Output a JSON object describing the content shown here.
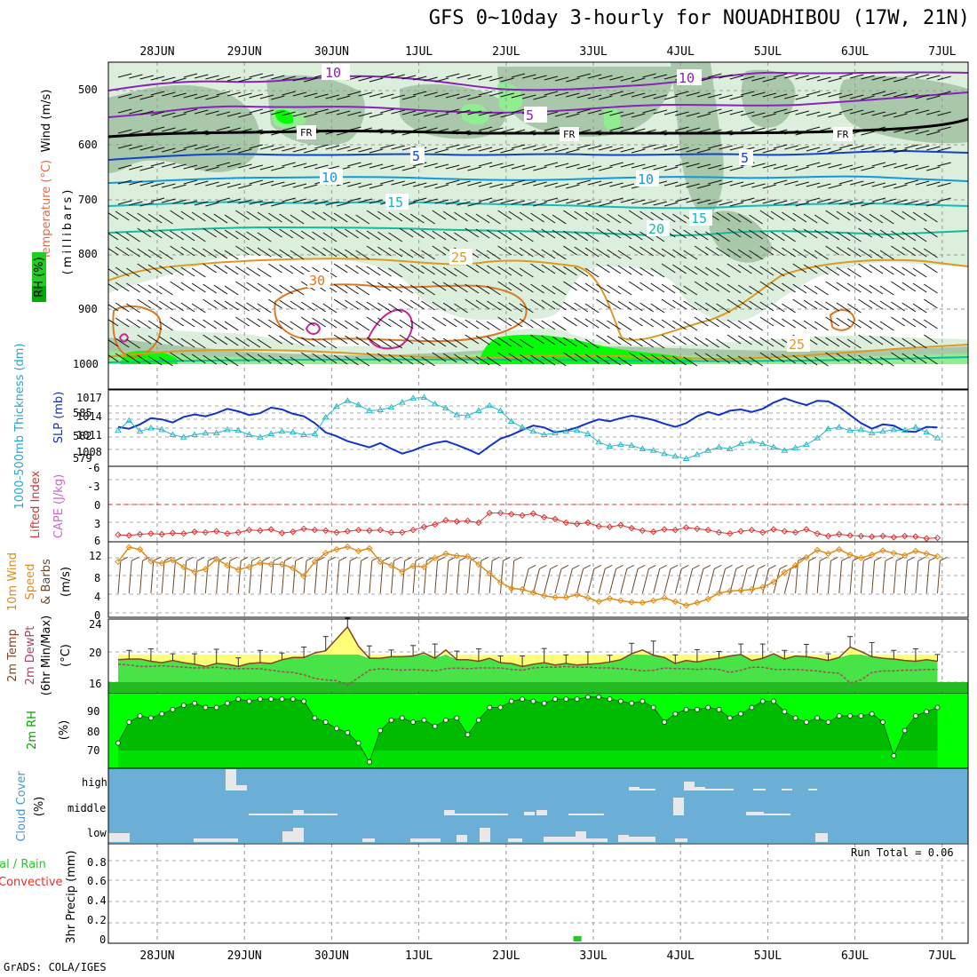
{
  "title": "GFS 0~10day 3-hourly for NOUADHIBOU (17W, 21N)",
  "footer": "GrADS: COLA/IGES",
  "colors": {
    "rh_light": "#dcefdc",
    "rh_mid": "#a9c8a9",
    "rh_dark": "#90ee90",
    "rh_bright": "#00ff00",
    "rain": "#22cc22",
    "cloud_bg": "#6baed6",
    "temp_fill": "#47e347",
    "temp_hot": "#ffff77",
    "slp": "#1133cc",
    "thick": "#22bbcc",
    "li": "#dd3333",
    "wind": "#e08c1a",
    "rh2m_dark": "#00bb00",
    "rh2m_mid": "#00dd00"
  },
  "x_dates": [
    "28JUN",
    "29JUN",
    "30JUN",
    "1JUL",
    "2JUL",
    "3JUL",
    "4JUL",
    "5JUL",
    "6JUL",
    "7JUL"
  ],
  "panels": {
    "upper": {
      "y_ticks": [
        "500",
        "600",
        "700",
        "800",
        "900",
        "1000"
      ],
      "label_wind": "Wind (m/s)",
      "label_temp": "Temperature (°C)",
      "label_rh": "RH (%)",
      "label_unit": "(millibars)",
      "contour_labels": [
        "10",
        "10",
        "5",
        "FR",
        "FR",
        "FR",
        "5",
        "5",
        "10",
        "10",
        "15",
        "15",
        "20",
        "25",
        "25",
        "30"
      ]
    },
    "slp": {
      "y_ticks_left": [
        "585",
        "582",
        "579"
      ],
      "y_ticks_right": [
        "1017",
        "1014",
        "1011",
        "1008"
      ],
      "label_thick": "1000-500mb Thickness (dm)",
      "label_slp": "SLP (mb)"
    },
    "cape": {
      "y_ticks": [
        "-6",
        "-3",
        "0",
        "3",
        "6"
      ],
      "label_li": "Lifted Index",
      "label_cape": "CAPE (J/kg)"
    },
    "wind10": {
      "y_ticks": [
        "12",
        "8",
        "4",
        "0"
      ],
      "label_a": "10m Wind",
      "label_b": "Speed",
      "label_c": "& Barbs",
      "label_unit": "(m/s)"
    },
    "temp2m": {
      "y_ticks": [
        "24",
        "20",
        "16"
      ],
      "label_a": "2m Temp",
      "label_b": "2m DewPt",
      "label_c": "(6hr Min/Max)",
      "label_unit": "(°C)"
    },
    "rh2m": {
      "y_ticks": [
        "90",
        "80",
        "70"
      ],
      "label_a": "2m RH",
      "label_unit": "(%)"
    },
    "cloud": {
      "y_ticks": [
        "high",
        "middle",
        "low"
      ],
      "label_a": "Cloud Cover",
      "label_unit": "(%)"
    },
    "precip": {
      "y_ticks": [
        "0.8",
        "0.6",
        "0.4",
        "0.2",
        "0"
      ],
      "label_a": "3hr Precip (mm)",
      "label_b": "tal / Rain",
      "label_c": "Convective",
      "run_total": "Run Total = 0.06"
    }
  },
  "chart_data": {
    "type": "line",
    "x": [
      "27JUN21",
      "28JUN00",
      "28JUN03",
      "28JUN06",
      "28JUN09",
      "28JUN12",
      "28JUN15",
      "28JUN18",
      "28JUN21",
      "29JUN00",
      "29JUN03",
      "29JUN06",
      "29JUN09",
      "29JUN12",
      "29JUN15",
      "29JUN18",
      "29JUN21",
      "30JUN00",
      "30JUN03",
      "30JUN06",
      "30JUN09",
      "30JUN12",
      "30JUN15",
      "30JUN18",
      "30JUN21",
      "1JUL00",
      "1JUL03",
      "1JUL06",
      "1JUL09",
      "1JUL12",
      "1JUL15",
      "1JUL18",
      "1JUL21",
      "2JUL00",
      "2JUL03",
      "2JUL06",
      "2JUL09",
      "2JUL12",
      "2JUL15",
      "2JUL18",
      "2JUL21",
      "3JUL00",
      "3JUL03",
      "3JUL06",
      "3JUL09",
      "3JUL12",
      "3JUL15",
      "3JUL18",
      "3JUL21",
      "4JUL00",
      "4JUL03",
      "4JUL06",
      "4JUL09",
      "4JUL12",
      "4JUL15",
      "4JUL18",
      "4JUL21",
      "5JUL00",
      "5JUL03",
      "5JUL06",
      "5JUL09",
      "5JUL12",
      "5JUL15",
      "5JUL18",
      "5JUL21",
      "6JUL00",
      "6JUL03",
      "6JUL06",
      "6JUL09",
      "6JUL12",
      "6JUL15",
      "6JUL18",
      "6JUL21",
      "7JUL00",
      "7JUL03",
      "7JUL06"
    ],
    "series": [
      {
        "name": "SLP (mb)",
        "values": [
          1012.2,
          1011.9,
          1012.6,
          1013.6,
          1013.4,
          1012.9,
          1013.8,
          1014.2,
          1013.9,
          1014.4,
          1015.1,
          1014.7,
          1014.1,
          1014.4,
          1015.3,
          1015.0,
          1014.3,
          1013.9,
          1012.8,
          1011.3,
          1010.7,
          1009.9,
          1009.4,
          1008.9,
          1009.6,
          1008.7,
          1007.9,
          1008.4,
          1009.1,
          1009.6,
          1009.9,
          1009.3,
          1008.6,
          1007.8,
          1009.1,
          1010.3,
          1010.9,
          1011.7,
          1012.4,
          1012.1,
          1011.3,
          1011.6,
          1012.1,
          1012.8,
          1013.4,
          1013.1,
          1013.6,
          1014.0,
          1013.7,
          1013.3,
          1012.7,
          1012.2,
          1012.8,
          1013.9,
          1014.6,
          1014.1,
          1014.8,
          1015.0,
          1014.6,
          1015.1,
          1016.1,
          1016.8,
          1016.2,
          1015.7,
          1016.4,
          1016.3,
          1015.4,
          1014.1,
          1012.8,
          1011.9,
          1012.6,
          1012.4,
          1011.5,
          1011.4,
          1012.2,
          1012.1
        ]
      },
      {
        "name": "Thickness (dm)",
        "values": [
          582.2,
          583.4,
          582.1,
          582.5,
          582.3,
          581.7,
          581.4,
          581.7,
          581.9,
          581.9,
          582.3,
          582.2,
          581.7,
          581.4,
          581.8,
          582.1,
          582.0,
          581.7,
          581.8,
          583.8,
          585.1,
          585.8,
          585.3,
          584.6,
          584.7,
          585.0,
          585.6,
          586.1,
          586.2,
          585.4,
          584.9,
          584.1,
          584.0,
          584.6,
          585.2,
          584.6,
          583.3,
          582.6,
          582.1,
          581.7,
          581.9,
          582.1,
          582.2,
          581.8,
          580.8,
          580.3,
          580.5,
          580.4,
          580.0,
          579.8,
          579.4,
          579.1,
          578.8,
          579.3,
          579.8,
          580.2,
          580.0,
          580.6,
          580.9,
          580.6,
          580.2,
          579.8,
          580.1,
          580.5,
          581.3,
          582.4,
          582.6,
          582.2,
          582.3,
          581.9,
          582.1,
          582.3,
          582.2,
          582.6,
          582.0,
          581.3
        ]
      },
      {
        "name": "Lifted Index",
        "values": [
          5.0,
          5.1,
          4.9,
          4.8,
          4.9,
          4.7,
          4.8,
          4.5,
          4.6,
          4.4,
          4.8,
          4.6,
          4.2,
          4.3,
          4.1,
          4.7,
          4.5,
          4.0,
          4.2,
          4.3,
          4.6,
          4.4,
          4.2,
          4.3,
          4.2,
          4.6,
          4.6,
          4.2,
          3.7,
          3.3,
          2.6,
          2.8,
          2.7,
          3.0,
          1.4,
          1.4,
          1.6,
          1.8,
          1.5,
          2.1,
          2.4,
          3.0,
          3.2,
          3.0,
          3.6,
          3.7,
          3.4,
          3.9,
          4.3,
          4.5,
          4.1,
          4.2,
          3.8,
          4.0,
          4.2,
          4.6,
          4.8,
          4.4,
          4.2,
          4.6,
          4.1,
          4.4,
          4.6,
          4.1,
          4.8,
          5.2,
          4.9,
          5.1,
          5.2,
          5.3,
          5.2,
          5.4,
          5.2,
          5.3,
          5.6,
          5.5
        ]
      },
      {
        "name": "10m Wind Speed (m/s)",
        "values": [
          10.1,
          12.8,
          12.4,
          10.2,
          9.8,
          10.4,
          9.1,
          8.2,
          8.7,
          10.6,
          9.4,
          8.6,
          9.1,
          9.9,
          9.6,
          9.6,
          8.9,
          7.4,
          10.1,
          11.7,
          12.4,
          12.9,
          12.1,
          12.6,
          10.1,
          9.4,
          8.2,
          9.3,
          9.1,
          10.8,
          11.6,
          11.2,
          11.1,
          9.6,
          7.9,
          6.2,
          5.1,
          4.9,
          4.3,
          3.7,
          3.4,
          3.4,
          3.9,
          3.3,
          2.6,
          3.2,
          2.8,
          2.5,
          2.4,
          2.8,
          3.3,
          2.6,
          1.9,
          2.4,
          3.1,
          4.2,
          4.6,
          4.7,
          4.9,
          5.3,
          6.3,
          8.1,
          9.4,
          10.9,
          12.3,
          11.6,
          12.4,
          11.4,
          10.8,
          11.4,
          12.2,
          11.7,
          11.3,
          12.1,
          11.6,
          11.1
        ]
      },
      {
        "name": "2m Temp (°C)",
        "values": [
          19.3,
          19.4,
          19.4,
          19.1,
          18.9,
          19.2,
          18.9,
          18.7,
          18.4,
          18.8,
          18.7,
          18.4,
          18.8,
          18.9,
          18.8,
          19.3,
          19.6,
          19.6,
          20.2,
          20.5,
          22.1,
          23.7,
          21.1,
          19.5,
          19.5,
          19.7,
          19.7,
          19.8,
          20.2,
          19.5,
          20.6,
          19.3,
          19.3,
          19.1,
          19.5,
          18.9,
          18.8,
          18.4,
          18.7,
          18.9,
          18.6,
          18.8,
          18.6,
          18.7,
          18.8,
          19.0,
          19.3,
          20.1,
          20.6,
          19.9,
          19.6,
          18.8,
          19.2,
          19.0,
          19.3,
          19.5,
          19.8,
          20.0,
          19.2,
          19.5,
          20.1,
          19.4,
          19.8,
          19.7,
          19.5,
          19.2,
          19.6,
          21.0,
          20.4,
          19.7,
          19.5,
          19.4,
          19.2,
          19.1,
          19.3,
          19.1
        ]
      },
      {
        "name": "2m DewPt (°C)",
        "values": [
          18.7,
          18.6,
          18.4,
          18.4,
          18.5,
          18.4,
          18.3,
          18.2,
          18.2,
          18.3,
          18.1,
          18.1,
          18.1,
          18.1,
          17.9,
          17.7,
          17.6,
          17.3,
          16.8,
          16.6,
          16.5,
          15.9,
          16.9,
          17.9,
          18.1,
          18.0,
          17.9,
          18.0,
          17.9,
          17.8,
          18.1,
          18.2,
          18.1,
          18.2,
          18.2,
          18.2,
          18.0,
          17.9,
          18.2,
          18.3,
          18.3,
          18.4,
          18.3,
          18.3,
          18.2,
          18.2,
          18.1,
          18.0,
          17.8,
          17.9,
          18.2,
          18.1,
          18.1,
          18.0,
          18.1,
          18.0,
          17.6,
          17.9,
          18.3,
          18.3,
          18.0,
          18.0,
          18.0,
          17.9,
          17.8,
          17.6,
          17.5,
          16.2,
          16.6,
          17.6,
          17.8,
          17.8,
          17.9,
          17.9,
          18.0,
          18.0
        ]
      },
      {
        "name": "2m RH (%)",
        "values": [
          74.0,
          84.0,
          87.0,
          86.0,
          88.0,
          90.0,
          92.0,
          93.0,
          91.0,
          91.0,
          93.0,
          95.0,
          94.0,
          95.0,
          95.0,
          95.0,
          95.0,
          94.0,
          86.0,
          84.0,
          81.0,
          79.0,
          74.0,
          65.0,
          80.0,
          85.0,
          86.0,
          84.0,
          85.0,
          82.0,
          85.0,
          86.0,
          78.0,
          85.0,
          91.0,
          91.0,
          94.0,
          95.0,
          94.0,
          93.0,
          95.0,
          95.0,
          95.0,
          96.0,
          96.0,
          95.0,
          94.0,
          93.0,
          94.0,
          91.0,
          84.0,
          88.0,
          90.0,
          90.0,
          91.0,
          90.0,
          86.0,
          88.0,
          91.0,
          94.0,
          94.0,
          89.0,
          86.0,
          84.0,
          86.0,
          84.0,
          87.0,
          87.0,
          87.0,
          88.0,
          84.0,
          68.0,
          80.0,
          87.0,
          89.0,
          91.0
        ]
      },
      {
        "name": "3hr Precip (mm)",
        "values": [
          0,
          0,
          0,
          0,
          0,
          0,
          0,
          0,
          0,
          0,
          0,
          0,
          0,
          0,
          0,
          0,
          0,
          0,
          0,
          0,
          0,
          0,
          0,
          0,
          0,
          0,
          0,
          0,
          0,
          0,
          0,
          0,
          0,
          0,
          0,
          0,
          0,
          0,
          0,
          0,
          0,
          0,
          0.06,
          0,
          0,
          0,
          0,
          0,
          0,
          0,
          0,
          0,
          0,
          0,
          0,
          0,
          0,
          0,
          0,
          0,
          0,
          0,
          0,
          0,
          0,
          0,
          0,
          0,
          0,
          0,
          0,
          0,
          0,
          0,
          0,
          0
        ]
      }
    ],
    "ylim_slp": [
      1006,
      1018
    ],
    "ylim_thickness": [
      578,
      587
    ],
    "ylim_li": [
      -6,
      6
    ],
    "ylim_wind": [
      0,
      13.5
    ],
    "ylim_temp": [
      15,
      24.5
    ],
    "ylim_rh": [
      62,
      98
    ],
    "ylim_precip": [
      0,
      1
    ],
    "grid": true
  }
}
